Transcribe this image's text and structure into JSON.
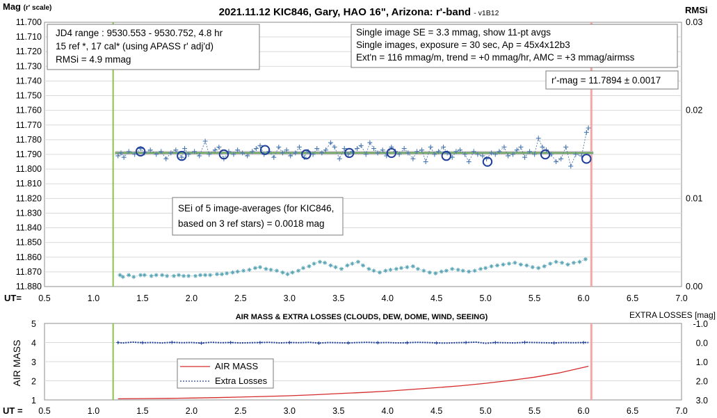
{
  "chart_data": [
    {
      "type": "scatter",
      "title": "2021.11.12 KIC846, Gary, HAO 16\", Arizona: r'-band",
      "version_tag": "- v1B12",
      "ylabel": "Mag",
      "ylabel_note": "(r' scale)",
      "y2label": "RMSi",
      "xlabel": "UT=",
      "xlim": [
        0.5,
        7.0
      ],
      "xticks": [
        "0.5",
        "1.0",
        "1.5",
        "2.0",
        "2.5",
        "3.0",
        "3.5",
        "4.0",
        "4.5",
        "5.0",
        "5.5",
        "6.0",
        "6.5",
        "7.0"
      ],
      "ylim": [
        11.7,
        11.88
      ],
      "yticks": [
        "11.700",
        "11.710",
        "11.720",
        "11.730",
        "11.740",
        "11.750",
        "11.760",
        "11.770",
        "11.780",
        "11.790",
        "11.800",
        "11.810",
        "11.820",
        "11.830",
        "11.840",
        "11.850",
        "11.860",
        "11.870",
        "11.880"
      ],
      "y2lim": [
        0.0,
        0.03
      ],
      "y2ticks": [
        "0.03",
        "0.02",
        "0.01",
        "0.00"
      ],
      "start_marker_x": 1.2,
      "end_marker_x": 6.08,
      "fit_mag": 11.789,
      "info_boxes": {
        "left": [
          "JD4 range : 9530.553 - 9530.752,  4.8  hr",
          "15 ref *, 17 cal* (using APASS r' adj'd)",
          "RMSi = 4.9 mmag"
        ],
        "right": [
          "Single image SE = 3.3 mmag, show  11-pt avgs",
          "Single images, exposure = 30 sec, Ap = 45x4x12b3",
          "Ext'n = 116 mmag/m, trend = +0  mmag/hr, AMC = +3 mmag/airmss"
        ],
        "result": "r'-mag = 11.7894 ± 0.0017",
        "sei": [
          "SEi of 5 image-averages (for KIC846,",
          "based on 3 ref stars) = 0.0018 mag"
        ]
      },
      "series": [
        {
          "marker": "plus",
          "color": "#4a78b0",
          "x": [
            1.25,
            1.28,
            1.31,
            1.36,
            1.42,
            1.48,
            1.52,
            1.58,
            1.64,
            1.69,
            1.74,
            1.79,
            1.84,
            1.9,
            1.93,
            1.97,
            2.03,
            2.08,
            2.14,
            2.18,
            2.24,
            2.28,
            2.33,
            2.38,
            2.43,
            2.47,
            2.52,
            2.57,
            2.62,
            2.66,
            2.7,
            2.74,
            2.79,
            2.84,
            2.89,
            2.93,
            2.97,
            3.01,
            3.06,
            3.1,
            3.15,
            3.19,
            3.24,
            3.28,
            3.33,
            3.37,
            3.42,
            3.46,
            3.51,
            3.56,
            3.6,
            3.64,
            3.69,
            3.73,
            3.78,
            3.82,
            3.86,
            3.9,
            3.95,
            3.99,
            4.04,
            4.08,
            4.12,
            4.17,
            4.21,
            4.26,
            4.3,
            4.35,
            4.39,
            4.44,
            4.48,
            4.52,
            4.57,
            4.61,
            4.66,
            4.7,
            4.74,
            4.79,
            4.83,
            4.88,
            4.92,
            4.97,
            5.01,
            5.06,
            5.1,
            5.14,
            5.19,
            5.23,
            5.28,
            5.32,
            5.36,
            5.4,
            5.45,
            5.5,
            5.54,
            5.58,
            5.62,
            5.67,
            5.72,
            5.77,
            5.82,
            5.87,
            5.92,
            5.98,
            6.03,
            6.05
          ],
          "y": [
            11.791,
            11.789,
            11.792,
            11.788,
            11.79,
            11.786,
            11.789,
            11.787,
            11.79,
            11.788,
            11.793,
            11.789,
            11.787,
            11.792,
            11.786,
            11.79,
            11.788,
            11.791,
            11.781,
            11.79,
            11.787,
            11.785,
            11.793,
            11.788,
            11.79,
            11.787,
            11.789,
            11.791,
            11.788,
            11.786,
            11.784,
            11.79,
            11.788,
            11.792,
            11.785,
            11.789,
            11.787,
            11.791,
            11.789,
            11.785,
            11.792,
            11.788,
            11.79,
            11.786,
            11.789,
            11.787,
            11.782,
            11.785,
            11.793,
            11.786,
            11.79,
            11.788,
            11.786,
            11.784,
            11.79,
            11.782,
            11.786,
            11.789,
            11.787,
            11.791,
            11.785,
            11.788,
            11.79,
            11.786,
            11.789,
            11.793,
            11.788,
            11.787,
            11.795,
            11.785,
            11.79,
            11.788,
            11.785,
            11.789,
            11.792,
            11.788,
            11.787,
            11.79,
            11.795,
            11.788,
            11.79,
            11.791,
            11.793,
            11.789,
            11.79,
            11.788,
            11.785,
            11.791,
            11.79,
            11.787,
            11.785,
            11.792,
            11.788,
            11.79,
            11.779,
            11.785,
            11.787,
            11.79,
            11.795,
            11.793,
            11.785,
            11.798,
            11.79,
            11.791,
            11.775,
            11.772
          ]
        },
        {
          "marker": "circle",
          "color": "#1f3f9a",
          "x": [
            1.48,
            1.9,
            2.33,
            2.75,
            3.17,
            3.61,
            4.04,
            4.6,
            5.02,
            5.61,
            6.03
          ],
          "y": [
            11.788,
            11.791,
            11.79,
            11.787,
            11.79,
            11.789,
            11.789,
            11.791,
            11.795,
            11.79,
            11.793
          ]
        },
        {
          "marker": "star",
          "color": "#5aa5b5",
          "axis": "y2",
          "x": [
            1.27,
            1.3,
            1.36,
            1.41,
            1.48,
            1.52,
            1.59,
            1.64,
            1.7,
            1.75,
            1.82,
            1.87,
            1.92,
            1.97,
            2.04,
            2.09,
            2.14,
            2.19,
            2.26,
            2.31,
            2.36,
            2.42,
            2.47,
            2.53,
            2.59,
            2.65,
            2.7,
            2.76,
            2.81,
            2.87,
            2.93,
            2.98,
            3.03,
            3.09,
            3.14,
            3.2,
            3.25,
            3.31,
            3.36,
            3.42,
            3.47,
            3.53,
            3.59,
            3.64,
            3.7,
            3.75,
            3.81,
            3.86,
            3.92,
            3.98,
            4.03,
            4.09,
            4.14,
            4.2,
            4.26,
            4.31,
            4.37,
            4.43,
            4.49,
            4.55,
            4.6,
            4.66,
            4.72,
            4.77,
            4.83,
            4.89,
            4.95,
            5.0,
            5.06,
            5.12,
            5.18,
            5.24,
            5.3,
            5.36,
            5.42,
            5.48,
            5.54,
            5.6,
            5.66,
            5.72,
            5.78,
            5.84,
            5.9,
            5.96,
            6.02
          ],
          "y": [
            0.0013,
            0.0011,
            0.0013,
            0.0011,
            0.0013,
            0.0013,
            0.0012,
            0.0013,
            0.0013,
            0.0012,
            0.0012,
            0.0013,
            0.0012,
            0.0012,
            0.0012,
            0.0013,
            0.0013,
            0.0013,
            0.0014,
            0.0014,
            0.0015,
            0.0016,
            0.0017,
            0.0018,
            0.0019,
            0.0021,
            0.0022,
            0.002,
            0.0019,
            0.0018,
            0.0016,
            0.0014,
            0.0016,
            0.0018,
            0.0021,
            0.0023,
            0.0026,
            0.0028,
            0.0027,
            0.0024,
            0.0022,
            0.002,
            0.0024,
            0.0026,
            0.0028,
            0.0024,
            0.002,
            0.0018,
            0.0016,
            0.0018,
            0.0019,
            0.002,
            0.0021,
            0.0022,
            0.0023,
            0.002,
            0.0018,
            0.0016,
            0.0015,
            0.0017,
            0.0018,
            0.002,
            0.0019,
            0.0018,
            0.0017,
            0.0018,
            0.002,
            0.0021,
            0.0023,
            0.0024,
            0.0025,
            0.0026,
            0.0027,
            0.0025,
            0.0024,
            0.0022,
            0.0021,
            0.0023,
            0.0026,
            0.0028,
            0.0027,
            0.0025,
            0.0027,
            0.0028,
            0.0031
          ]
        }
      ]
    },
    {
      "type": "line",
      "title": "AIR MASS & EXTRA LOSSES (CLOUDS, DEW, DOME, WIND, SEEING)",
      "ylabel": "AIR MASS",
      "y2label": "EXTRA LOSSES [mag]",
      "xlabel": "UT =",
      "xlim": [
        0.5,
        7.0
      ],
      "xticks": [
        "0.5",
        "1.0",
        "1.5",
        "2.0",
        "2.5",
        "3.0",
        "3.5",
        "4.0",
        "4.5",
        "5.0",
        "5.5",
        "6.0",
        "6.5",
        "7.0"
      ],
      "ylim": [
        1,
        5
      ],
      "yticks": [
        "5",
        "4",
        "3",
        "2",
        "1"
      ],
      "y2lim": [
        -1.0,
        3.0
      ],
      "y2ticks": [
        "-1.0",
        "0.0",
        "1.0",
        "2.0",
        "3.0"
      ],
      "start_marker_x": 1.2,
      "end_marker_x": 6.08,
      "legend": {
        "position": "center-left",
        "entries": [
          "AIR MASS",
          "Extra Losses"
        ]
      },
      "series": [
        {
          "name": "AIR MASS",
          "color": "#d42a2a",
          "x": [
            1.25,
            1.5,
            1.75,
            2.0,
            2.25,
            2.5,
            2.75,
            3.0,
            3.25,
            3.5,
            3.75,
            4.0,
            4.25,
            4.5,
            4.75,
            5.0,
            5.25,
            5.5,
            5.75,
            6.05
          ],
          "y": [
            1.06,
            1.07,
            1.08,
            1.1,
            1.12,
            1.15,
            1.18,
            1.22,
            1.27,
            1.33,
            1.39,
            1.46,
            1.55,
            1.64,
            1.74,
            1.87,
            2.02,
            2.19,
            2.41,
            2.76
          ]
        },
        {
          "name": "Extra Losses",
          "color": "#1f3f9a",
          "x": [
            1.25,
            1.3,
            1.4,
            1.5,
            1.6,
            1.7,
            1.8,
            1.9,
            2.0,
            2.1,
            2.2,
            2.3,
            2.4,
            2.5,
            2.6,
            2.7,
            2.8,
            2.9,
            3.0,
            3.1,
            3.2,
            3.3,
            3.4,
            3.5,
            3.6,
            3.7,
            3.8,
            3.9,
            4.0,
            4.1,
            4.2,
            4.3,
            4.4,
            4.5,
            4.6,
            4.7,
            4.8,
            4.9,
            5.0,
            5.1,
            5.2,
            5.3,
            5.4,
            5.5,
            5.6,
            5.7,
            5.8,
            5.9,
            6.0,
            6.05
          ],
          "y": [
            0.0,
            0.02,
            -0.02,
            0.01,
            0.0,
            0.02,
            -0.01,
            0.01,
            0.0,
            0.03,
            -0.01,
            0.01,
            0.0,
            0.02,
            0.01,
            0.0,
            -0.01,
            0.02,
            0.0,
            0.01,
            -0.01,
            0.03,
            0.0,
            0.01,
            0.02,
            0.0,
            -0.01,
            0.01,
            0.0,
            0.02,
            0.01,
            -0.01,
            0.0,
            0.02,
            0.03,
            0.01,
            0.0,
            -0.02,
            0.04,
            0.0,
            0.01,
            0.02,
            -0.01,
            0.0,
            0.01,
            0.02,
            0.0,
            0.01,
            0.0,
            0.0
          ]
        }
      ]
    }
  ]
}
